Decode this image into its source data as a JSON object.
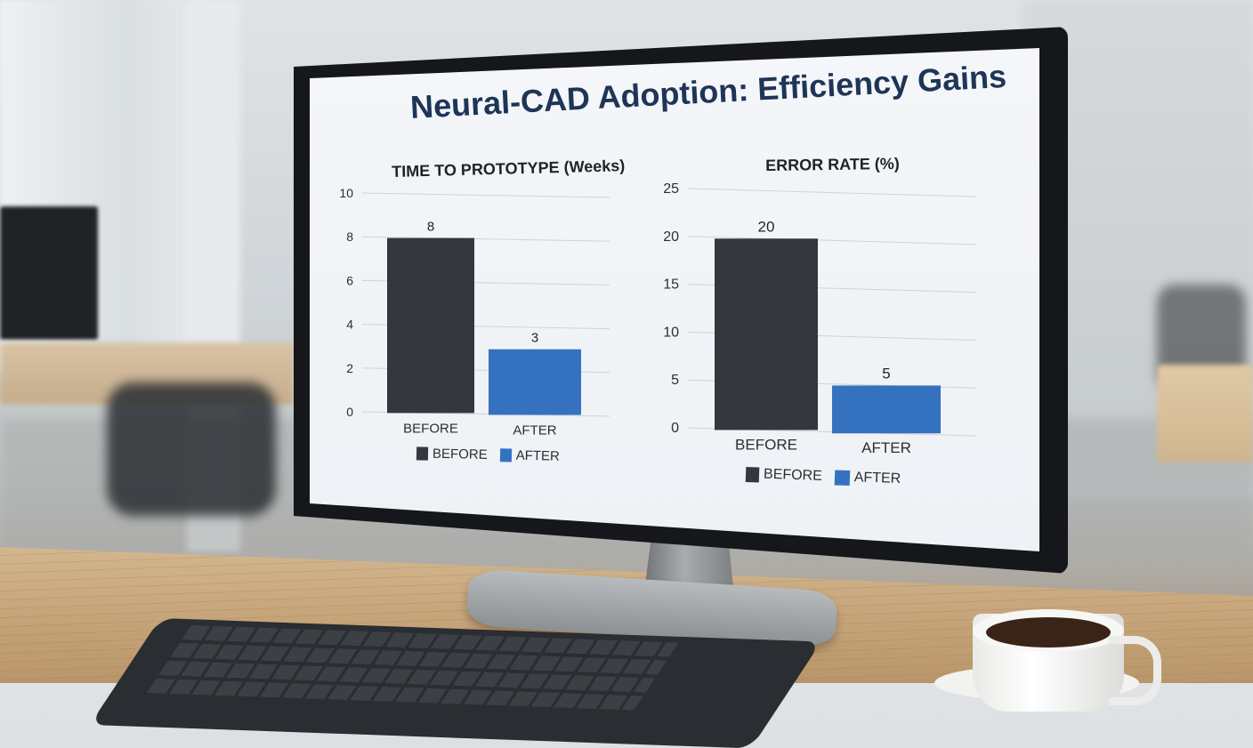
{
  "main_title": "Neural-CAD Adoption: Efficiency Gains",
  "colors": {
    "before": "#34383e",
    "after": "#3472c0",
    "title": "#1e3557"
  },
  "chart_data": [
    {
      "type": "bar",
      "title": "TIME TO PROTOTYPE (Weeks)",
      "categories": [
        "BEFORE",
        "AFTER"
      ],
      "values": [
        8,
        3
      ],
      "data_labels": [
        "8",
        "3"
      ],
      "ylim": [
        0,
        10
      ],
      "yticks": [
        "0",
        "2",
        "4",
        "6",
        "8",
        "10"
      ],
      "grid": true,
      "legend": [
        "BEFORE",
        "AFTER"
      ],
      "legend_position": "bottom"
    },
    {
      "type": "bar",
      "title": "ERROR RATE (%)",
      "categories": [
        "BEFORE",
        "AFTER"
      ],
      "values": [
        20,
        5
      ],
      "data_labels": [
        "20",
        "5"
      ],
      "ylim": [
        0,
        25
      ],
      "yticks": [
        "0",
        "5",
        "10",
        "15",
        "20",
        "25"
      ],
      "grid": true,
      "legend": [
        "BEFORE",
        "AFTER"
      ],
      "legend_position": "bottom"
    }
  ]
}
